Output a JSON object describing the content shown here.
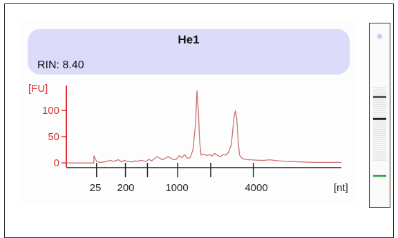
{
  "header": {
    "sample_name": "He1",
    "rin_label": "RIN: 8.40"
  },
  "colors": {
    "header_bg": "#dcdcfa",
    "axis_y": "#d83030",
    "trace": "#c87070",
    "marker_band": "#1aa040",
    "marker_dot": "#c8c8f0"
  },
  "chart_data": {
    "type": "line",
    "ylabel": "[FU]",
    "xlabel": "[nt]",
    "y_ticks": [
      0,
      50,
      100
    ],
    "ylim": [
      -5,
      150
    ],
    "x_tick_labels": [
      "25",
      "200",
      "1000",
      "4000"
    ],
    "series": [
      {
        "values_description_free": true,
        "x": [
          0.0,
          0.05,
          0.1,
          0.1,
          0.11,
          0.12,
          0.14,
          0.16,
          0.17,
          0.19,
          0.2,
          0.21,
          0.22,
          0.24,
          0.25,
          0.26,
          0.27,
          0.29,
          0.3,
          0.31,
          0.32,
          0.33,
          0.35,
          0.36,
          0.37,
          0.39,
          0.4,
          0.41,
          0.42,
          0.43,
          0.44,
          0.45,
          0.46,
          0.47,
          0.475,
          0.48,
          0.485,
          0.49,
          0.5,
          0.51,
          0.52,
          0.53,
          0.54,
          0.55,
          0.56,
          0.57,
          0.58,
          0.59,
          0.6,
          0.61,
          0.615,
          0.62,
          0.625,
          0.63,
          0.64,
          0.65,
          0.66,
          0.67,
          0.7,
          0.72,
          0.74,
          0.77,
          0.8,
          0.85,
          0.9,
          0.95,
          1.0
        ],
        "y": [
          0,
          0,
          0,
          14,
          3,
          1,
          2,
          5,
          3,
          6,
          2,
          5,
          3,
          2,
          4,
          3,
          5,
          3,
          7,
          4,
          8,
          12,
          6,
          9,
          12,
          6,
          7,
          14,
          10,
          16,
          9,
          10,
          24,
          75,
          138,
          100,
          40,
          15,
          17,
          14,
          16,
          13,
          18,
          14,
          12,
          16,
          15,
          20,
          35,
          88,
          100,
          82,
          40,
          15,
          8,
          7,
          6,
          6,
          5,
          5,
          6,
          4,
          3,
          2,
          1,
          1,
          1
        ]
      }
    ],
    "grid": false
  },
  "lane": {
    "bands": [
      {
        "pos": 0.4,
        "strength": 0.9
      },
      {
        "pos": 0.52,
        "strength": 1.0
      }
    ],
    "faint_region": [
      0.35,
      0.75
    ],
    "marker_pos": 0.83,
    "dot_pos": 0.07
  }
}
